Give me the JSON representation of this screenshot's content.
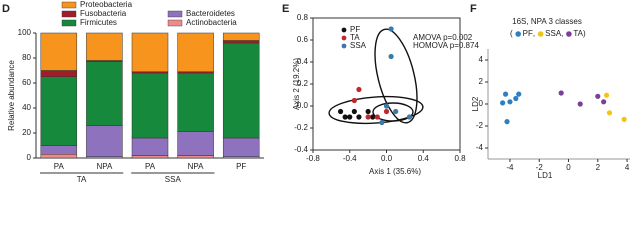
{
  "chart_data": [
    {
      "type": "stacked_bar",
      "panel": "D",
      "categories": [
        "PA",
        "NPA",
        "PA",
        "NPA",
        "PF"
      ],
      "groups": [
        "TA",
        "TA",
        "SSA",
        "SSA",
        null
      ],
      "ylabel": "Relative abundance",
      "ylim": [
        0,
        100
      ],
      "yticks": [
        0,
        20,
        40,
        60,
        80,
        100
      ],
      "series": [
        {
          "name": "Actinobacteria",
          "color": "#ee8a8a",
          "values": [
            3,
            1,
            2,
            2,
            1
          ]
        },
        {
          "name": "Bacteroidetes",
          "color": "#8f72bd",
          "values": [
            7,
            25,
            14,
            19,
            15
          ]
        },
        {
          "name": "Firmicutes",
          "color": "#17893d",
          "values": [
            55,
            51,
            52,
            47,
            76
          ]
        },
        {
          "name": "Fusobacteria",
          "color": "#a11d2b",
          "values": [
            5,
            1,
            1,
            1,
            2
          ]
        },
        {
          "name": "Proteobacteria",
          "color": "#f7941d",
          "values": [
            30,
            22,
            31,
            31,
            6
          ]
        }
      ]
    },
    {
      "type": "scatter",
      "panel": "E",
      "xlabel": "Axis 1 (35.6%)",
      "ylabel": "Axis 2 (19.2%)",
      "annotations": [
        "AMOVA p=0.002",
        "HOMOVA p=0.874"
      ],
      "xlim": [
        -0.8,
        0.8
      ],
      "xticks": [
        -0.8,
        -0.4,
        {
          "value": 0,
          "label": "0.0"
        },
        0.4,
        0.8
      ],
      "ylim": [
        -0.4,
        0.8
      ],
      "yticks": [
        -0.4,
        -0.2,
        {
          "value": 0,
          "label": "0.0"
        },
        0.2,
        0.4,
        0.6,
        0.8
      ],
      "box": true,
      "series": [
        {
          "name": "PF",
          "color": "#111111",
          "x": [
            -0.5,
            -0.45,
            -0.4,
            -0.35,
            -0.3,
            -0.2,
            -0.15
          ],
          "values": [
            -0.05,
            -0.1,
            -0.1,
            -0.05,
            -0.1,
            -0.05,
            -0.1
          ]
        },
        {
          "name": "TA",
          "color": "#c0282d",
          "x": [
            -0.3,
            -0.35,
            -0.2,
            0.0,
            -0.1
          ],
          "values": [
            0.15,
            0.05,
            -0.1,
            -0.05,
            -0.1
          ]
        },
        {
          "name": "SSA",
          "color": "#3b79a8",
          "x": [
            0.05,
            0.05,
            0.1,
            0.25,
            0.0,
            -0.05
          ],
          "values": [
            0.7,
            0.45,
            -0.05,
            -0.1,
            0.0,
            -0.15
          ]
        }
      ]
    },
    {
      "type": "scatter",
      "panel": "F",
      "title": "16S, NPA 3 classes",
      "legend_separators": [
        "(",
        ",",
        ",",
        ")"
      ],
      "xlabel": "LD1",
      "ylabel": "LD2",
      "xlim": [
        -5.5,
        4.2
      ],
      "xticks": [
        -4,
        -2,
        0,
        2,
        4
      ],
      "ylim": [
        -5,
        5
      ],
      "yticks": [
        -4,
        -2,
        0,
        2,
        4
      ],
      "box": false,
      "series": [
        {
          "name": "PF",
          "color": "#2e7fc1",
          "x": [
            -4.5,
            -4,
            -3.6,
            -3.4,
            -4.3,
            -4.2
          ],
          "values": [
            0.1,
            0.2,
            0.5,
            0.9,
            0.9,
            -1.6
          ]
        },
        {
          "name": "SSA",
          "color": "#f2c418",
          "x": [
            2.6,
            2.8,
            3.8
          ],
          "values": [
            0.8,
            -0.8,
            -1.4
          ]
        },
        {
          "name": "TA",
          "color": "#7b3f98",
          "x": [
            -0.5,
            0.8,
            2,
            2.4
          ],
          "values": [
            1.0,
            0.0,
            0.7,
            0.2
          ]
        }
      ]
    }
  ]
}
